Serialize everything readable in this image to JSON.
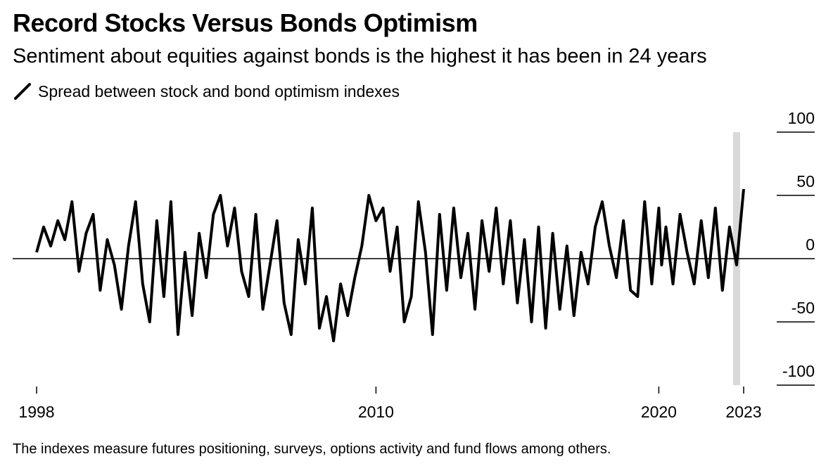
{
  "title": "Record Stocks Versus Bonds Optimism",
  "subtitle": "Sentiment about equities against bonds is the highest it has been in 24 years",
  "legend": {
    "label": "Spread between stock and bond optimism indexes",
    "icon": "line-swatch-icon"
  },
  "footnote": "The indexes measure futures positioning, surveys, options activity and fund flows among others.",
  "colors": {
    "line": "#000000",
    "highlight": "#d9d9d9",
    "zero_line": "#000000",
    "gridline": "#000000"
  },
  "chart_data": {
    "type": "line",
    "series": [
      {
        "values_note_free": true,
        "x": [
          1998.0,
          1998.25,
          1998.5,
          1998.75,
          1999.0,
          1999.25,
          1999.5,
          1999.75,
          2000.0,
          2000.25,
          2000.5,
          2000.75,
          2001.0,
          2001.25,
          2001.5,
          2001.75,
          2002.0,
          2002.25,
          2002.5,
          2002.75,
          2003.0,
          2003.25,
          2003.5,
          2003.75,
          2004.0,
          2004.25,
          2004.5,
          2004.75,
          2005.0,
          2005.25,
          2005.5,
          2005.75,
          2006.0,
          2006.25,
          2006.5,
          2006.75,
          2007.0,
          2007.25,
          2007.5,
          2007.75,
          2008.0,
          2008.25,
          2008.5,
          2008.75,
          2009.0,
          2009.25,
          2009.5,
          2009.75,
          2010.0,
          2010.25,
          2010.5,
          2010.75,
          2011.0,
          2011.25,
          2011.5,
          2011.75,
          2012.0,
          2012.25,
          2012.5,
          2012.75,
          2013.0,
          2013.25,
          2013.5,
          2013.75,
          2014.0,
          2014.25,
          2014.5,
          2014.75,
          2015.0,
          2015.25,
          2015.5,
          2015.75,
          2016.0,
          2016.25,
          2016.5,
          2016.75,
          2017.0,
          2017.25,
          2017.5,
          2017.75,
          2018.0,
          2018.25,
          2018.5,
          2018.75,
          2019.0,
          2019.25,
          2019.5,
          2019.75,
          2020.0,
          2020.1,
          2020.25,
          2020.5,
          2020.75,
          2021.0,
          2021.25,
          2021.5,
          2021.75,
          2022.0,
          2022.25,
          2022.5,
          2022.75,
          2023.0
        ],
        "values": [
          5,
          25,
          10,
          30,
          15,
          45,
          -10,
          20,
          35,
          -25,
          15,
          -5,
          -40,
          10,
          45,
          -20,
          -50,
          30,
          -30,
          45,
          -60,
          5,
          -45,
          20,
          -15,
          35,
          50,
          10,
          40,
          -10,
          -30,
          35,
          -40,
          -5,
          30,
          -35,
          -60,
          15,
          -20,
          40,
          -55,
          -30,
          -65,
          -20,
          -45,
          -15,
          10,
          50,
          30,
          40,
          -10,
          25,
          -50,
          -30,
          45,
          5,
          -60,
          35,
          -25,
          40,
          -15,
          20,
          -40,
          30,
          -10,
          40,
          -20,
          30,
          -35,
          15,
          -50,
          25,
          -55,
          20,
          -40,
          10,
          -45,
          5,
          -20,
          25,
          45,
          10,
          -15,
          30,
          -25,
          -30,
          45,
          -20,
          40,
          -5,
          25,
          -20,
          35,
          5,
          -20,
          30,
          -15,
          40,
          -25,
          25,
          -5,
          55
        ]
      }
    ],
    "x_ticks": [
      "1998",
      "2010",
      "2020",
      "2023"
    ],
    "y_ticks": [
      "100",
      "50",
      "0",
      "-50",
      "-100"
    ],
    "ylim": [
      -100,
      100
    ],
    "xlim": [
      1998,
      2023
    ],
    "highlight_x": 2022.75,
    "grid": false
  }
}
